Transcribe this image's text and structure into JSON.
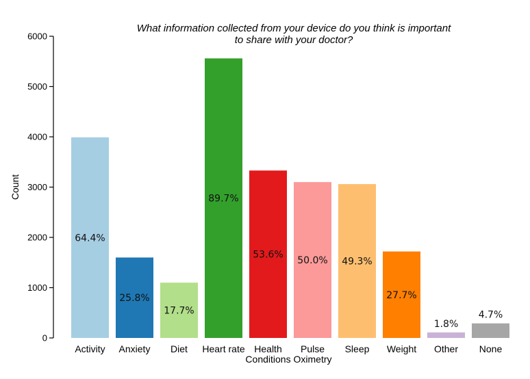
{
  "chart_data": {
    "type": "bar",
    "title_lines": [
      "What information collected from your device do you think is important",
      "to share with your doctor?"
    ],
    "xlabel": "",
    "ylabel": "Count",
    "ylim": [
      0,
      6000
    ],
    "yticks": [
      0,
      1000,
      2000,
      3000,
      4000,
      5000,
      6000
    ],
    "grid": false,
    "categories": [
      [
        "Activity"
      ],
      [
        "Anxiety"
      ],
      [
        "Diet"
      ],
      [
        "Heart rate"
      ],
      [
        "Health",
        "Conditions"
      ],
      [
        "Pulse",
        "Oximetry"
      ],
      [
        "Sleep"
      ],
      [
        "Weight"
      ],
      [
        "Other"
      ],
      [
        "None"
      ]
    ],
    "values": [
      3990,
      1600,
      1100,
      5560,
      3330,
      3100,
      3060,
      1720,
      110,
      290
    ],
    "labels": [
      "64.4%",
      "25.8%",
      "17.7%",
      "89.7%",
      "53.6%",
      "50.0%",
      "49.3%",
      "27.7%",
      "1.8%",
      "4.7%"
    ],
    "colors": [
      "#a6cee3",
      "#1f78b4",
      "#b2df8a",
      "#33a02c",
      "#e31a1c",
      "#fb9a99",
      "#fdbf6f",
      "#ff7f00",
      "#cab2d6",
      "#a6a6a6"
    ]
  }
}
